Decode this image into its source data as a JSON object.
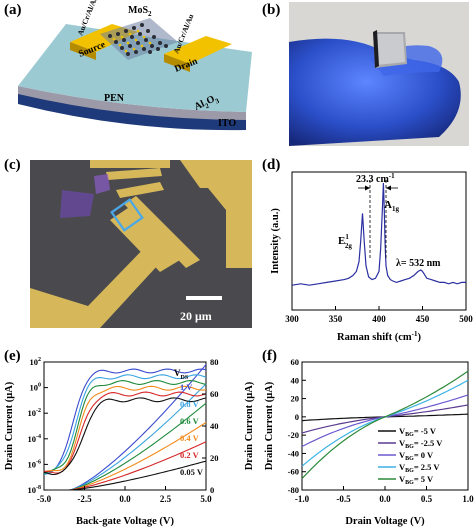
{
  "panels": {
    "a": "(a)",
    "b": "(b)",
    "c": "(c)",
    "d": "(d)",
    "e": "(e)",
    "f": "(f)"
  },
  "device": {
    "mos2": "MoS",
    "mos2_sub": "2",
    "source": "Source",
    "drain": "Drain",
    "contact_left": "Au/Cr/Al/Au",
    "contact_right": "Au/Cr/Al/Au",
    "pen": "PEN",
    "al2o3": "Al",
    "al2o3_s1": "2",
    "al2o3_o": "O",
    "al2o3_s2": "3",
    "ito": "ITO"
  },
  "micro": {
    "scalebar": "20 μm"
  },
  "colors": {
    "raman": "#2a2fa0",
    "chip_teal": "#9dc9d1",
    "gold": "#e8b800",
    "glove": "#2f54cf"
  },
  "chart_data": [
    {
      "type": "line",
      "panel": "d",
      "xlabel": "Raman shift (cm",
      "xlabel_sup": "-1",
      "xlabel_end": ")",
      "ylabel": "Intensity (a.u.)",
      "xlim": [
        300,
        500
      ],
      "xticks": [
        "300",
        "350",
        "400",
        "450",
        "500"
      ],
      "x": [
        300,
        310,
        320,
        330,
        340,
        350,
        360,
        365,
        370,
        374,
        377,
        379,
        381,
        383,
        385,
        388,
        392,
        396,
        400,
        402,
        404,
        405,
        406,
        407,
        408,
        410,
        413,
        416,
        420,
        425,
        430,
        435,
        440,
        445,
        448,
        450,
        452,
        455,
        460,
        465,
        470,
        475,
        480,
        485,
        490,
        495,
        500
      ],
      "y": [
        0.18,
        0.19,
        0.18,
        0.19,
        0.2,
        0.21,
        0.22,
        0.23,
        0.25,
        0.28,
        0.35,
        0.5,
        0.7,
        0.5,
        0.32,
        0.24,
        0.22,
        0.23,
        0.28,
        0.45,
        0.75,
        0.92,
        0.75,
        0.48,
        0.32,
        0.25,
        0.22,
        0.21,
        0.2,
        0.21,
        0.22,
        0.23,
        0.25,
        0.28,
        0.29,
        0.28,
        0.26,
        0.23,
        0.22,
        0.21,
        0.2,
        0.2,
        0.19,
        0.2,
        0.19,
        0.2,
        0.2
      ],
      "annotations": {
        "delta_value": "23.3 cm",
        "delta_sup": "-1",
        "e2g_base": "E",
        "e2g_sup": "1",
        "e2g_sub": "2g",
        "a1g_base": "A",
        "a1g_sub": "1g",
        "lambda": "λ= 532 nm"
      }
    },
    {
      "type": "line",
      "panel": "e",
      "xlabel": "Back-gate Voltage (V)",
      "ylabel_left": "Drain Current (μA)",
      "ylabel_right": "Drain Current (μA)",
      "xlim": [
        -5,
        5
      ],
      "xticks": [
        "-5.0",
        "-2.5",
        "0.0",
        "2.5",
        "5.0"
      ],
      "ylim_log": [
        -8,
        2
      ],
      "yticks_left": [
        "10^2",
        "10^0",
        "10^-2",
        "10^-4",
        "10^-6",
        "10^-8"
      ],
      "yticks_right": [
        "0",
        "20",
        "40",
        "60",
        "80"
      ],
      "legend_title": "V",
      "legend_title_sub": "DS",
      "series": [
        {
          "name": "1 V",
          "color": "#3a4bcf"
        },
        {
          "name": "0.8 V",
          "color": "#39a4e0"
        },
        {
          "name": "0.6 V",
          "color": "#1f8a3b"
        },
        {
          "name": "0.4 V",
          "color": "#f28b1c"
        },
        {
          "name": "0.2 V",
          "color": "#d62728"
        },
        {
          "name": "0.05 V",
          "color": "#111111"
        }
      ]
    },
    {
      "type": "line",
      "panel": "f",
      "xlabel": "Drain Voltage (V)",
      "ylabel": "Drain Current (μA)",
      "xlim": [
        -1.0,
        1.0
      ],
      "ylim": [
        -80,
        60
      ],
      "xticks": [
        "-1.0",
        "-0.5",
        "0.0",
        "0.5",
        "1.0"
      ],
      "yticks": [
        "60",
        "40",
        "20",
        "0",
        "-20",
        "-40",
        "-60",
        "-80"
      ],
      "legend_prefix": "V",
      "legend_sub": "BG",
      "series": [
        {
          "name": "= -5 V",
          "color": "#111111",
          "slope": 3
        },
        {
          "name": "= -2.5 V",
          "color": "#5b3a8f",
          "slope": 13
        },
        {
          "name": "= 0 V",
          "color": "#6a5ad0",
          "slope": 24
        },
        {
          "name": "= 2.5 V",
          "color": "#3db2e6",
          "slope": 40
        },
        {
          "name": "= 5 V",
          "color": "#2d8a3a",
          "slope": 50
        }
      ]
    }
  ]
}
